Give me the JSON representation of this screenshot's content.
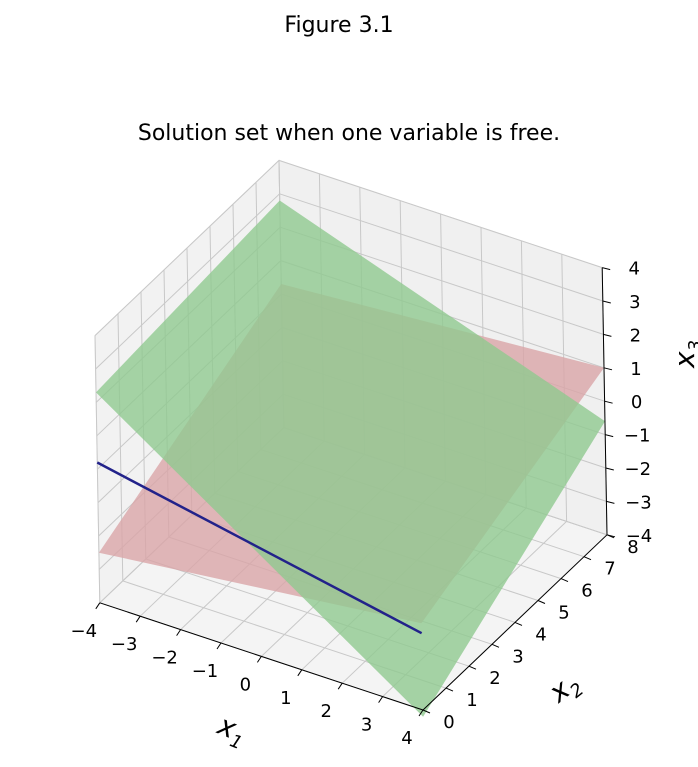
{
  "figure": {
    "suptitle": "Figure 3.1"
  },
  "chart_data": {
    "type": "surface3d",
    "title": "Solution set when one variable is free.",
    "axes": {
      "x1": {
        "label": "x",
        "subscript": "1",
        "range": [
          -4,
          4
        ],
        "ticks": [
          "−4",
          "−3",
          "−2",
          "−1",
          "0",
          "1",
          "2",
          "3",
          "4"
        ]
      },
      "x2": {
        "label": "x",
        "subscript": "2",
        "range": [
          0,
          8
        ],
        "ticks": [
          "0",
          "1",
          "2",
          "3",
          "4",
          "5",
          "6",
          "7",
          "8"
        ]
      },
      "x3": {
        "label": "x",
        "subscript": "3",
        "range": [
          -4,
          4
        ],
        "ticks": [
          "−4",
          "−3",
          "−2",
          "−1",
          "0",
          "1",
          "2",
          "3",
          "4"
        ]
      }
    },
    "grid": true,
    "planes": [
      {
        "color": "#d9a5a7",
        "opacity": 0.8,
        "corners": [
          [
            -4,
            0,
            -2.5
          ],
          [
            4,
            0,
            -1.4
          ],
          [
            4,
            8,
            1.0
          ],
          [
            -4,
            8,
            0.3
          ]
        ]
      },
      {
        "color": "#90c990",
        "opacity": 0.8,
        "corners": [
          [
            -4,
            0,
            2.3
          ],
          [
            4,
            0,
            -4.2
          ],
          [
            4,
            8,
            -0.6
          ],
          [
            -4,
            8,
            2.8
          ]
        ]
      }
    ],
    "intersection_line": {
      "color": "#22228a",
      "from": [
        -4,
        0,
        0.2
      ],
      "to": [
        4,
        0,
        -1.7
      ]
    }
  }
}
